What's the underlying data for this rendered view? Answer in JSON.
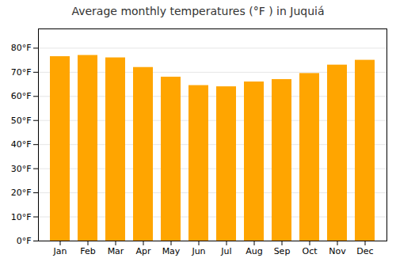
{
  "chart_data": {
    "type": "bar",
    "title": "Average monthly temperatures (°F ) in Juquiá",
    "categories": [
      "Jan",
      "Feb",
      "Mar",
      "Apr",
      "May",
      "Jun",
      "Jul",
      "Aug",
      "Sep",
      "Oct",
      "Nov",
      "Dec"
    ],
    "values": [
      76.5,
      77.0,
      76.0,
      72.0,
      68.0,
      64.5,
      64.0,
      66.0,
      67.0,
      69.5,
      73.0,
      75.0
    ],
    "color": "#FFA500",
    "ylim": [
      0,
      88
    ],
    "yticks": [
      {
        "value": 0,
        "label": "0°F"
      },
      {
        "value": 10,
        "label": "10°F"
      },
      {
        "value": 20,
        "label": "20°F"
      },
      {
        "value": 30,
        "label": "30°F"
      },
      {
        "value": 40,
        "label": "40°F"
      },
      {
        "value": 50,
        "label": "50°F"
      },
      {
        "value": 60,
        "label": "60°F"
      },
      {
        "value": 70,
        "label": "70°F"
      },
      {
        "value": 80,
        "label": "80°F"
      }
    ],
    "grid": true
  }
}
